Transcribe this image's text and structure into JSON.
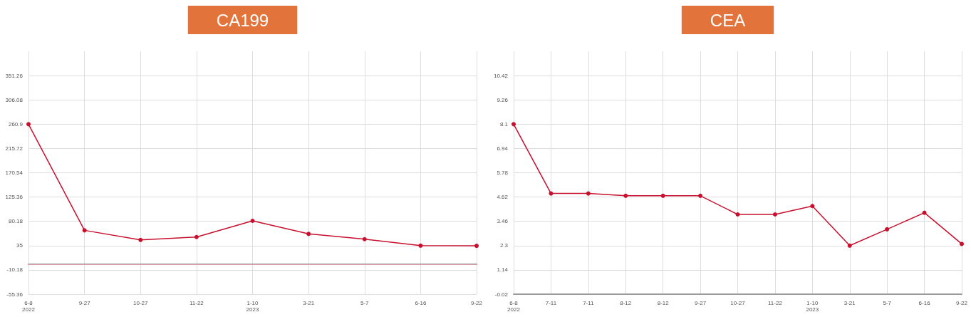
{
  "chart_data": [
    {
      "type": "line",
      "title": "CA199",
      "categories": [
        "6-8\n2022",
        "9-27",
        "10-27",
        "11-22",
        "1-10\n2023",
        "3-21",
        "5-7",
        "6-16",
        "9-22"
      ],
      "series": [
        {
          "color": "#c8102e",
          "values": [
            260.9,
            63.4,
            45.6,
            51,
            81.1,
            56.8,
            47,
            35,
            34.6
          ]
        }
      ],
      "ylim": [
        -55.36,
        396.44
      ],
      "yticks": [
        -55.36,
        -10.18,
        35,
        80.18,
        125.36,
        170.54,
        215.72,
        260.9,
        306.08,
        351.26
      ],
      "ref_lines": [
        {
          "axis": "y",
          "value": 0,
          "color": "#e8a0a8"
        }
      ],
      "grid": true,
      "marker": "circle",
      "line_style": "solid"
    },
    {
      "type": "line",
      "title": "CEA",
      "categories": [
        "6-8\n2022",
        "7-11",
        "7-11",
        "8-12",
        "8-12",
        "9-27",
        "10-27",
        "11-22",
        "1-10\n2023",
        "3-21",
        "5-7",
        "6-16",
        "9-22"
      ],
      "series": [
        {
          "color": "#c8102e",
          "values": [
            8.1,
            4.79,
            4.79,
            4.68,
            4.68,
            4.68,
            3.79,
            3.79,
            4.19,
            2.3,
            3.08,
            3.87,
            2.38
          ]
        }
      ],
      "ylim": [
        -0.02,
        11.58
      ],
      "yticks": [
        -0.02,
        1.14,
        2.3,
        3.46,
        4.62,
        5.78,
        6.94,
        8.1,
        9.26,
        10.42
      ],
      "grid": true,
      "marker": "circle",
      "line_style": "solid"
    }
  ]
}
